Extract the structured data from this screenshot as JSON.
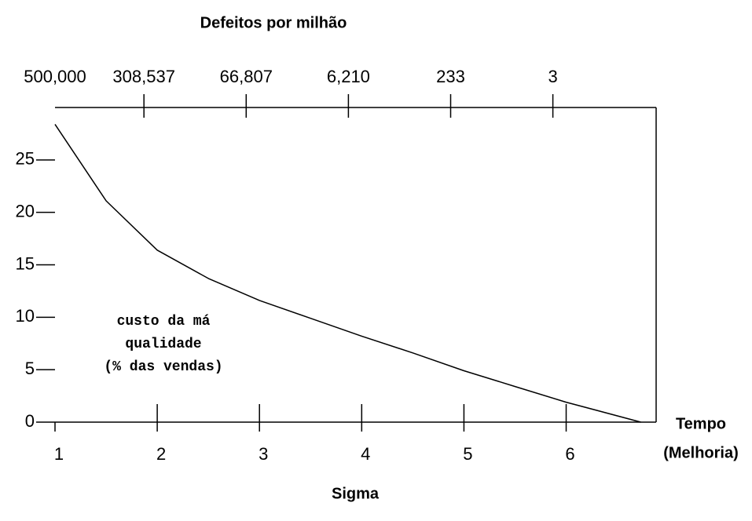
{
  "chart_data": {
    "type": "line",
    "title": "Defeitos por milhão",
    "x_label": "Sigma",
    "x_end_label": [
      "Tempo",
      "(Melhoria)"
    ],
    "annotation": [
      "custo da má",
      "qualidade",
      "(% das vendas)"
    ],
    "x": [
      1,
      1.5,
      2,
      2.5,
      3,
      3.5,
      4,
      4.5,
      5,
      5.5,
      6,
      6.73
    ],
    "values": [
      28.4,
      21.1,
      16.4,
      13.7,
      11.6,
      9.9,
      8.2,
      6.6,
      4.9,
      3.4,
      1.9,
      0
    ],
    "color": "#000000",
    "xlim": [
      1,
      6.88
    ],
    "xticks": [
      1,
      2,
      3,
      4,
      5,
      6
    ],
    "x2ticks": [
      {
        "value": 1,
        "label": "500,000"
      },
      {
        "value": 1.87,
        "label": "308,537"
      },
      {
        "value": 2.87,
        "label": "66,807"
      },
      {
        "value": 3.87,
        "label": "6,210"
      },
      {
        "value": 4.87,
        "label": "233"
      },
      {
        "value": 5.87,
        "label": "3"
      }
    ],
    "ylim": [
      0,
      30
    ],
    "yticks": [
      0,
      5,
      10,
      15,
      20,
      25
    ]
  }
}
